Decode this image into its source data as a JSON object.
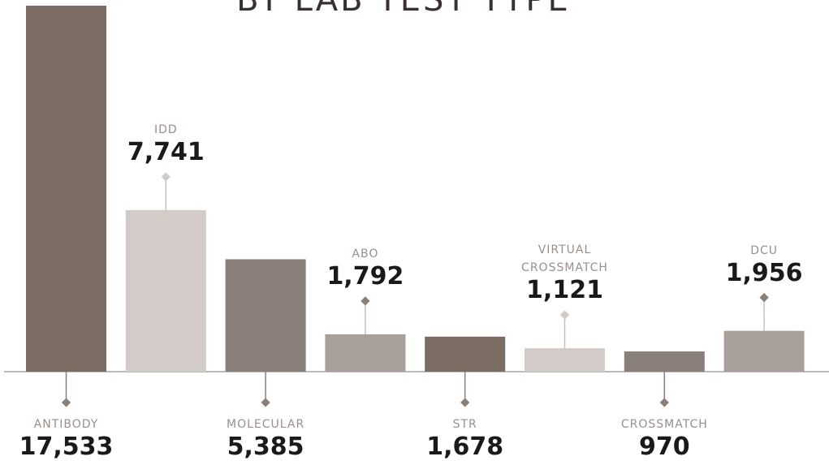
{
  "chart_data": {
    "type": "bar",
    "title": "BY LAB TEST TYPE",
    "categories": [
      "ANTIBODY",
      "IDD",
      "MOLECULAR",
      "ABO",
      "STR",
      "VIRTUAL CROSSMATCH",
      "CROSSMATCH",
      "DCU"
    ],
    "values": [
      17533,
      7741,
      5385,
      1792,
      1678,
      1121,
      970,
      1956
    ],
    "value_labels": [
      "17,533",
      "7,741",
      "5,385",
      "1,792",
      "1,678",
      "1,121",
      "970",
      "1,956"
    ],
    "colors": [
      "#7b6d63",
      "#d3cbc8",
      "#8b7f79",
      "#aaa09b",
      "#7b6d63",
      "#d3cbc8",
      "#8b7f79",
      "#aaa09b"
    ]
  }
}
